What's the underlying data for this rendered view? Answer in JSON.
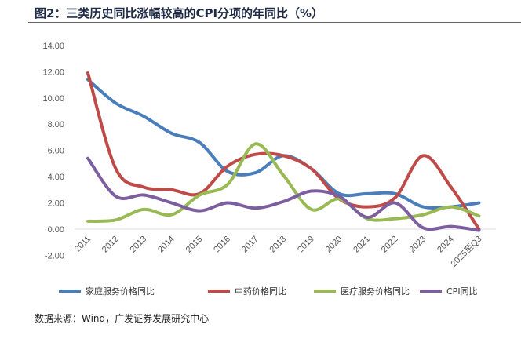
{
  "title": "图2：三类历史同比涨幅较高的CPI分项的年同比（%）",
  "source": "数据来源：Wind，广发证券发展研究中心",
  "chart_data": {
    "type": "line",
    "title": "图2：三类历史同比涨幅较高的CPI分项的年同比（%）",
    "xlabel": "",
    "ylabel": "",
    "ylim": [
      -2,
      14
    ],
    "yticks": [
      "-2.00",
      "0.00",
      "2.00",
      "4.00",
      "6.00",
      "8.00",
      "10.00",
      "12.00",
      "14.00"
    ],
    "categories": [
      "2011",
      "2012",
      "2013",
      "2014",
      "2015",
      "2016",
      "2017",
      "2018",
      "2019",
      "2020",
      "2021",
      "2022",
      "2023",
      "2024",
      "2025至Q3"
    ],
    "grid": false,
    "legend": "bottom",
    "series": [
      {
        "name": "家庭服务价格同比",
        "color": "#4a7ebb",
        "values": [
          11.4,
          9.6,
          8.6,
          7.3,
          6.6,
          4.4,
          4.3,
          5.6,
          4.6,
          2.7,
          2.7,
          2.7,
          1.7,
          1.7,
          2.0
        ]
      },
      {
        "name": "中药价格同比",
        "color": "#be4b48",
        "values": [
          11.9,
          4.6,
          3.2,
          3.0,
          2.7,
          4.8,
          5.7,
          5.6,
          4.6,
          2.3,
          1.7,
          2.4,
          5.6,
          3.2,
          0.0
        ]
      },
      {
        "name": "医疗服务价格同比",
        "color": "#98b954",
        "values": [
          0.6,
          0.7,
          1.5,
          1.1,
          2.6,
          3.4,
          6.5,
          4.1,
          1.5,
          2.3,
          0.8,
          0.8,
          1.1,
          1.7,
          1.0
        ]
      },
      {
        "name": "CPI同比",
        "color": "#7d5fa0",
        "values": [
          5.4,
          2.5,
          2.6,
          2.0,
          1.4,
          2.0,
          1.6,
          2.1,
          2.9,
          2.5,
          0.9,
          2.0,
          0.1,
          0.2,
          -0.1
        ]
      }
    ]
  }
}
